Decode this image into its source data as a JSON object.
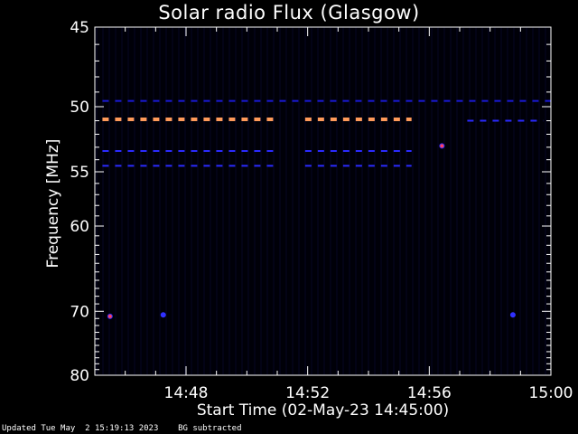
{
  "footer": {
    "updated": "Updated Tue May  2 15:19:13 2023",
    "note": "BG subtracted"
  },
  "chart_data": {
    "type": "heatmap",
    "title": "Solar radio Flux (Glasgow)",
    "xlabel": "Start Time (02-May-23 14:45:00)",
    "ylabel": "Frequency [MHz]",
    "x_ticks": [
      "14:48",
      "14:52",
      "14:56",
      "15:00"
    ],
    "y_ticks": [
      45,
      50,
      55,
      60,
      70,
      80
    ],
    "xlim": [
      "14:45:00",
      "15:00:00"
    ],
    "ylim": [
      45,
      80
    ],
    "y_scale": "reciprocal",
    "grid": false,
    "features": [
      {
        "kind": "band",
        "freq_mhz": 50.9,
        "start": "14:45:15",
        "end": "14:55:25",
        "color": "#ff9a5a",
        "gap": [
          "14:51:00",
          "14:51:55"
        ]
      },
      {
        "kind": "band",
        "freq_mhz": 53.3,
        "start": "14:45:15",
        "end": "14:55:25",
        "color": "#2a2aff",
        "gap": [
          "14:51:00",
          "14:51:55"
        ]
      },
      {
        "kind": "band",
        "freq_mhz": 54.5,
        "start": "14:45:15",
        "end": "14:55:25",
        "color": "#2a2aff",
        "gap": [
          "14:51:00",
          "14:51:55"
        ]
      },
      {
        "kind": "band",
        "freq_mhz": 49.6,
        "start": "14:45:15",
        "end": "15:00:00",
        "color": "#1a1ad8",
        "gap": null
      },
      {
        "kind": "band",
        "freq_mhz": 51.0,
        "start": "14:57:15",
        "end": "14:59:45",
        "color": "#2a2aff",
        "gap": null
      },
      {
        "kind": "spot",
        "freq_mhz": 52.9,
        "time": "14:56:25",
        "color": "#ff4060"
      },
      {
        "kind": "spot",
        "freq_mhz": 70.7,
        "time": "14:45:30",
        "color": "#ff4060"
      },
      {
        "kind": "spot",
        "freq_mhz": 70.5,
        "time": "14:47:15",
        "color": "#3030ff"
      },
      {
        "kind": "spot",
        "freq_mhz": 70.5,
        "time": "14:58:45",
        "color": "#3030ff"
      }
    ]
  }
}
